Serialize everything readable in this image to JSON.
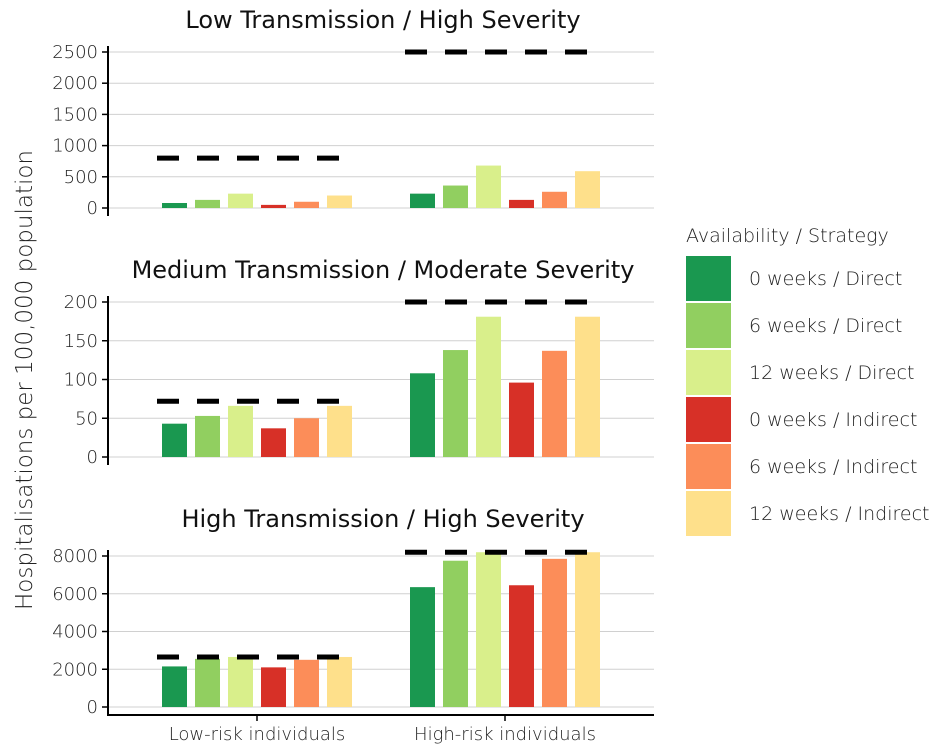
{
  "chart_data": {
    "type": "bar",
    "ylabel": "Hospitalisations per 100,000 population",
    "categories": [
      "Low-risk individuals",
      "High-risk individuals"
    ],
    "legend": {
      "title": "Availability / Strategy",
      "position": "right",
      "entries": [
        {
          "label": "0 weeks / Direct",
          "color": "#1a9850"
        },
        {
          "label": "6 weeks / Direct",
          "color": "#91cf60"
        },
        {
          "label": "12 weeks / Direct",
          "color": "#d9ef8b"
        },
        {
          "label": "0 weeks / Indirect",
          "color": "#d73027"
        },
        {
          "label": "6 weeks / Indirect",
          "color": "#fc8d59"
        },
        {
          "label": "12 weeks / Indirect",
          "color": "#fee08b"
        }
      ]
    },
    "grid": true,
    "panels": [
      {
        "title": "Low Transmission / High Severity",
        "ylim": [
          0,
          2500
        ],
        "yticks": [
          "0",
          "500",
          "1000",
          "1500",
          "2000",
          "2500"
        ],
        "yticks_values": [
          0,
          500,
          1000,
          1500,
          2000,
          2500
        ],
        "reference": [
          800,
          2500
        ],
        "series": [
          {
            "name": "0 weeks / Direct",
            "values": [
              80,
              230
            ]
          },
          {
            "name": "6 weeks / Direct",
            "values": [
              130,
              360
            ]
          },
          {
            "name": "12 weeks / Direct",
            "values": [
              230,
              680
            ]
          },
          {
            "name": "0 weeks / Indirect",
            "values": [
              50,
              130
            ]
          },
          {
            "name": "6 weeks / Indirect",
            "values": [
              100,
              260
            ]
          },
          {
            "name": "12 weeks / Indirect",
            "values": [
              200,
              590
            ]
          }
        ]
      },
      {
        "title": "Medium Transmission / Moderate Severity",
        "ylim": [
          0,
          200
        ],
        "yticks": [
          "0",
          "50",
          "100",
          "150",
          "200"
        ],
        "yticks_values": [
          0,
          50,
          100,
          150,
          200
        ],
        "reference": [
          72,
          200
        ],
        "series": [
          {
            "name": "0 weeks / Direct",
            "values": [
              43,
              108
            ]
          },
          {
            "name": "6 weeks / Direct",
            "values": [
              53,
              138
            ]
          },
          {
            "name": "12 weeks / Direct",
            "values": [
              66,
              181
            ]
          },
          {
            "name": "0 weeks / Indirect",
            "values": [
              37,
              96
            ]
          },
          {
            "name": "6 weeks / Indirect",
            "values": [
              50,
              137
            ]
          },
          {
            "name": "12 weeks / Indirect",
            "values": [
              66,
              181
            ]
          }
        ]
      },
      {
        "title": "High Transmission / High Severity",
        "ylim": [
          0,
          8000
        ],
        "yticks": [
          "0",
          "2000",
          "4000",
          "6000",
          "8000"
        ],
        "yticks_values": [
          0,
          2000,
          4000,
          6000,
          8000
        ],
        "reference": [
          2650,
          8200
        ],
        "series": [
          {
            "name": "0 weeks / Direct",
            "values": [
              2150,
              6350
            ]
          },
          {
            "name": "6 weeks / Direct",
            "values": [
              2550,
              7750
            ]
          },
          {
            "name": "12 weeks / Direct",
            "values": [
              2650,
              8200
            ]
          },
          {
            "name": "0 weeks / Indirect",
            "values": [
              2100,
              6450
            ]
          },
          {
            "name": "6 weeks / Indirect",
            "values": [
              2500,
              7850
            ]
          },
          {
            "name": "12 weeks / Indirect",
            "values": [
              2650,
              8200
            ]
          }
        ]
      }
    ]
  }
}
